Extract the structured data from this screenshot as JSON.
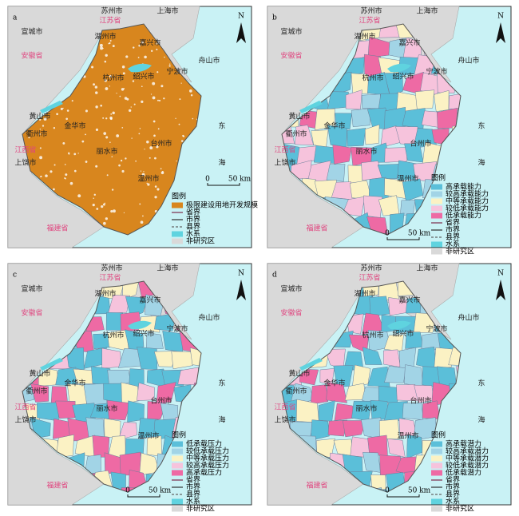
{
  "places": [
    "苏州市",
    "上海市",
    "江苏省",
    "宣城市",
    "湖州市",
    "嘉兴市",
    "安徽省",
    "杭州市",
    "绍兴市",
    "宁波市",
    "舟山市",
    "黄山市",
    "衢州市",
    "金华市",
    "台州市",
    "丽水市",
    "温州市",
    "江西省",
    "上饶市",
    "福建省",
    "东",
    "海"
  ],
  "north": "N",
  "scale": {
    "zero": "0",
    "distance": "50 km"
  },
  "panels": [
    {
      "label": "a",
      "legend": {
        "title": "图例",
        "items": [
          {
            "label": "极限建设用地开发规模",
            "color": "#d8861e",
            "kind": "fill"
          },
          {
            "label": "省界",
            "color": "#7a2a4a",
            "kind": "line"
          },
          {
            "label": "市界",
            "color": "#333333",
            "kind": "line"
          },
          {
            "label": "县界",
            "color": "#666666",
            "kind": "dash"
          },
          {
            "label": "水系",
            "color": "#5fd3df",
            "kind": "fill"
          },
          {
            "label": "非研究区",
            "color": "#d9d9d9",
            "kind": "fill"
          }
        ]
      }
    },
    {
      "label": "b",
      "legend": {
        "title": "图例",
        "items": [
          {
            "label": "高承载能力",
            "color": "#5bbfd9",
            "kind": "fill"
          },
          {
            "label": "较高承载能力",
            "color": "#a2d4e6",
            "kind": "fill"
          },
          {
            "label": "中等承载能力",
            "color": "#fbf2c4",
            "kind": "fill"
          },
          {
            "label": "较低承载能力",
            "color": "#f6c3dc",
            "kind": "fill"
          },
          {
            "label": "低承载能力",
            "color": "#ee6aa4",
            "kind": "fill"
          },
          {
            "label": "省界",
            "color": "#7a2a4a",
            "kind": "line"
          },
          {
            "label": "市界",
            "color": "#333333",
            "kind": "line"
          },
          {
            "label": "县界",
            "color": "#666666",
            "kind": "dash"
          },
          {
            "label": "水系",
            "color": "#5fd3df",
            "kind": "fill"
          },
          {
            "label": "非研究区",
            "color": "#d9d9d9",
            "kind": "fill"
          }
        ]
      }
    },
    {
      "label": "c",
      "legend": {
        "title": "图例",
        "items": [
          {
            "label": "低承载压力",
            "color": "#5bbfd9",
            "kind": "fill"
          },
          {
            "label": "较低承载压力",
            "color": "#a2d4e6",
            "kind": "fill"
          },
          {
            "label": "中等承载压力",
            "color": "#fbf2c4",
            "kind": "fill"
          },
          {
            "label": "较高承载压力",
            "color": "#f6c3dc",
            "kind": "fill"
          },
          {
            "label": "高承载压力",
            "color": "#ee6aa4",
            "kind": "fill"
          },
          {
            "label": "省界",
            "color": "#7a2a4a",
            "kind": "line"
          },
          {
            "label": "市界",
            "color": "#333333",
            "kind": "line"
          },
          {
            "label": "县界",
            "color": "#666666",
            "kind": "dash"
          },
          {
            "label": "水系",
            "color": "#5fd3df",
            "kind": "fill"
          },
          {
            "label": "非研究区",
            "color": "#d9d9d9",
            "kind": "fill"
          }
        ]
      }
    },
    {
      "label": "d",
      "legend": {
        "title": "图例",
        "items": [
          {
            "label": "高承载潜力",
            "color": "#5bbfd9",
            "kind": "fill"
          },
          {
            "label": "较高承载潜力",
            "color": "#a2d4e6",
            "kind": "fill"
          },
          {
            "label": "中等承载潜力",
            "color": "#fbf2c4",
            "kind": "fill"
          },
          {
            "label": "较低承载潜力",
            "color": "#f6c3dc",
            "kind": "fill"
          },
          {
            "label": "低承载潜力",
            "color": "#ee6aa4",
            "kind": "fill"
          },
          {
            "label": "省界",
            "color": "#7a2a4a",
            "kind": "line"
          },
          {
            "label": "市界",
            "color": "#333333",
            "kind": "line"
          },
          {
            "label": "县界",
            "color": "#666666",
            "kind": "dash"
          },
          {
            "label": "水系",
            "color": "#5fd3df",
            "kind": "fill"
          },
          {
            "label": "非研究区",
            "color": "#d9d9d9",
            "kind": "fill"
          }
        ]
      }
    }
  ]
}
